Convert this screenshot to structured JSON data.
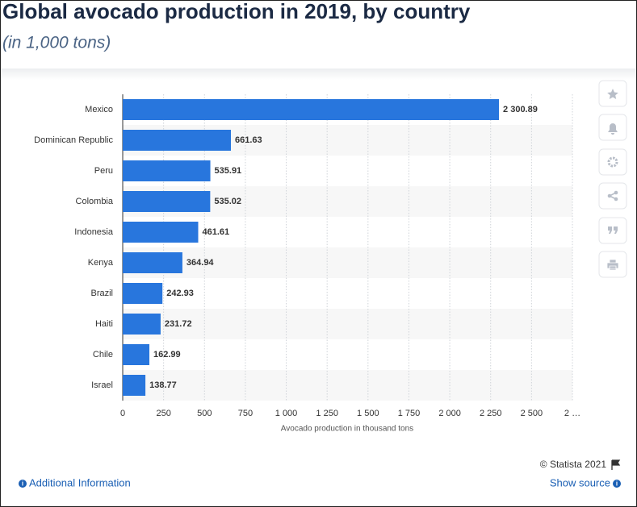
{
  "chart_data": {
    "type": "bar",
    "orientation": "horizontal",
    "title": "Global avocado production in 2019, by country",
    "subtitle": "(in 1,000 tons)",
    "x_label": "Avocado production in thousand tons",
    "categories": [
      "Mexico",
      "Dominican Republic",
      "Peru",
      "Colombia",
      "Indonesia",
      "Kenya",
      "Brazil",
      "Haiti",
      "Chile",
      "Israel"
    ],
    "values": [
      2300.89,
      661.63,
      535.91,
      535.02,
      461.61,
      364.94,
      242.93,
      231.72,
      162.99,
      138.77
    ],
    "value_labels": [
      "2 300.89",
      "661.63",
      "535.91",
      "535.02",
      "461.61",
      "364.94",
      "242.93",
      "231.72",
      "162.99",
      "138.77"
    ],
    "color": "#2876dd",
    "xlim": [
      0,
      2750
    ],
    "xticks": [
      0,
      250,
      500,
      750,
      {
        "value": 1000,
        "label": "1 000"
      },
      {
        "value": 1250,
        "label": "1 250"
      },
      {
        "value": 1500,
        "label": "1 500"
      },
      {
        "value": 1750,
        "label": "1 750"
      },
      {
        "value": 2000,
        "label": "2 000"
      },
      {
        "value": 2250,
        "label": "2 250"
      },
      {
        "value": 2500,
        "label": "2 500"
      },
      {
        "value": 2750,
        "label": "2 …"
      }
    ],
    "grid": true
  },
  "footer": {
    "copyright": "© Statista 2021",
    "additional_info": "Additional Information",
    "show_source": "Show source"
  }
}
